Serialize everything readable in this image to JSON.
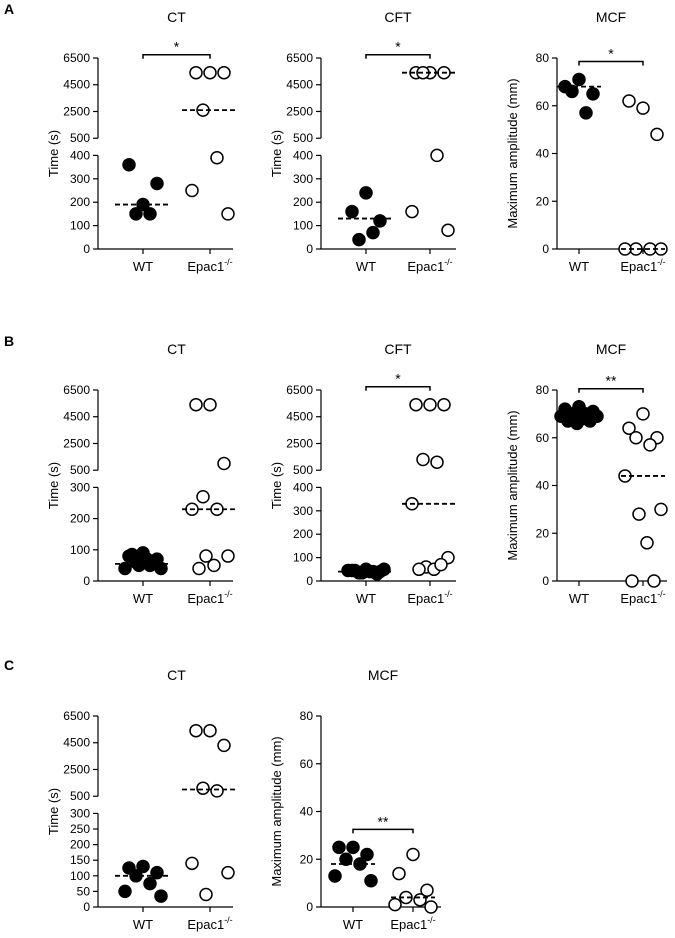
{
  "panel_labels": [
    "A",
    "B",
    "C"
  ],
  "chart_data": [
    {
      "type": "scatter",
      "title": "CT",
      "ylabel": "Time (s)",
      "categories": [
        "WT",
        {
          "text": "Epac1",
          "sup": "-/-"
        }
      ],
      "y_segments": [
        {
          "ylim": [
            0,
            400
          ],
          "yticks": [
            0,
            100,
            200,
            300,
            400
          ]
        },
        {
          "ylim": [
            500,
            6500
          ],
          "yticks": [
            500,
            2500,
            4500,
            6500
          ]
        }
      ],
      "series": [
        {
          "color": "#000000",
          "filled": true,
          "values": [
            190,
            360,
            280,
            150,
            150
          ],
          "median": 190
        },
        {
          "color": "#000000",
          "filled": false,
          "values": [
            5400,
            5400,
            5400,
            2600,
            390,
            250,
            150
          ],
          "median": 2600
        }
      ],
      "significance": "*"
    },
    {
      "type": "scatter",
      "title": "CFT",
      "ylabel": "Time (s)",
      "categories": [
        "WT",
        {
          "text": "Epac1",
          "sup": "-/-"
        }
      ],
      "y_segments": [
        {
          "ylim": [
            0,
            400
          ],
          "yticks": [
            0,
            100,
            200,
            300,
            400
          ]
        },
        {
          "ylim": [
            500,
            6500
          ],
          "yticks": [
            500,
            2500,
            4500,
            6500
          ]
        }
      ],
      "series": [
        {
          "color": "#000000",
          "filled": true,
          "values": [
            240,
            160,
            120,
            40,
            70
          ],
          "median": 130
        },
        {
          "color": "#000000",
          "filled": false,
          "values": [
            5400,
            5400,
            5400,
            5400,
            400,
            160,
            80
          ],
          "median": 5400
        }
      ],
      "significance": "*"
    },
    {
      "type": "scatter",
      "title": "MCF",
      "ylabel": "Maximum amplitude (mm)",
      "categories": [
        "WT",
        {
          "text": "Epac1",
          "sup": "-/-"
        }
      ],
      "ylim": [
        0,
        80
      ],
      "yticks": [
        0,
        20,
        40,
        60,
        80
      ],
      "series": [
        {
          "color": "#000000",
          "filled": true,
          "values": [
            71,
            68,
            65,
            66,
            57
          ],
          "median": 68
        },
        {
          "color": "#000000",
          "filled": false,
          "values": [
            59,
            62,
            48,
            0,
            0,
            0,
            0
          ],
          "median": 0
        }
      ],
      "significance": "*"
    },
    {
      "type": "scatter",
      "title": "CT",
      "ylabel": "Time (s)",
      "categories": [
        "WT",
        {
          "text": "Epac1",
          "sup": "-/-"
        }
      ],
      "y_segments": [
        {
          "ylim": [
            0,
            300
          ],
          "yticks": [
            0,
            100,
            200,
            300
          ]
        },
        {
          "ylim": [
            500,
            6500
          ],
          "yticks": [
            500,
            2500,
            4500,
            6500
          ]
        }
      ],
      "series": [
        {
          "color": "#000000",
          "filled": true,
          "values": [
            90,
            80,
            70,
            60,
            50,
            40,
            40,
            50,
            70,
            85
          ],
          "median": 55
        },
        {
          "color": "#000000",
          "filled": false,
          "values": [
            5400,
            5400,
            1000,
            270,
            230,
            230,
            80,
            80,
            50,
            40
          ],
          "median": 230
        }
      ]
    },
    {
      "type": "scatter",
      "title": "CFT",
      "ylabel": "Time (s)",
      "categories": [
        "WT",
        {
          "text": "Epac1",
          "sup": "-/-"
        }
      ],
      "y_segments": [
        {
          "ylim": [
            0,
            400
          ],
          "yticks": [
            0,
            100,
            200,
            300,
            400
          ]
        },
        {
          "ylim": [
            500,
            6500
          ],
          "yticks": [
            500,
            2500,
            4500,
            6500
          ]
        }
      ],
      "series": [
        {
          "color": "#000000",
          "filled": true,
          "values": [
            50,
            45,
            40,
            35,
            40,
            45,
            50,
            35,
            40,
            45,
            30,
            40
          ],
          "median": 40
        },
        {
          "color": "#000000",
          "filled": false,
          "values": [
            5400,
            5400,
            5400,
            1300,
            1100,
            330,
            100,
            60,
            50,
            50,
            70
          ],
          "median": 330
        }
      ],
      "significance": "*"
    },
    {
      "type": "scatter",
      "title": "MCF",
      "ylabel": "Maximum amplitude (mm)",
      "categories": [
        "WT",
        {
          "text": "Epac1",
          "sup": "-/-"
        }
      ],
      "ylim": [
        0,
        80
      ],
      "yticks": [
        0,
        20,
        40,
        60,
        80
      ],
      "series": [
        {
          "color": "#000000",
          "filled": true,
          "values": [
            73,
            72,
            71,
            70,
            70,
            69,
            69,
            68,
            68,
            67,
            67,
            66
          ],
          "median": 69
        },
        {
          "color": "#000000",
          "filled": false,
          "values": [
            70,
            64,
            60,
            60,
            57,
            44,
            30,
            28,
            16,
            0,
            0
          ],
          "median": 44
        }
      ],
      "significance": "**"
    },
    {
      "type": "scatter",
      "title": "CT",
      "ylabel": "Time (s)",
      "categories": [
        "WT",
        {
          "text": "Epac1",
          "sup": "-/-"
        }
      ],
      "y_segments": [
        {
          "ylim": [
            0,
            300
          ],
          "yticks": [
            0,
            50,
            100,
            150,
            200,
            250,
            300
          ]
        },
        {
          "ylim": [
            500,
            6500
          ],
          "yticks": [
            500,
            2500,
            4500,
            6500
          ]
        }
      ],
      "series": [
        {
          "color": "#000000",
          "filled": true,
          "values": [
            130,
            125,
            110,
            100,
            75,
            50,
            35
          ],
          "median": 100
        },
        {
          "color": "#000000",
          "filled": false,
          "values": [
            5400,
            5400,
            4300,
            1100,
            900,
            140,
            110,
            40
          ],
          "median": 1000
        }
      ]
    },
    {
      "type": "scatter",
      "title": "MCF",
      "ylabel": "Maximum amplitude (mm)",
      "categories": [
        "WT",
        {
          "text": "Epac1",
          "sup": "-/-"
        }
      ],
      "ylim": [
        0,
        80
      ],
      "yticks": [
        0,
        20,
        40,
        60,
        80
      ],
      "series": [
        {
          "color": "#000000",
          "filled": true,
          "values": [
            25,
            25,
            22,
            20,
            18,
            13,
            11
          ],
          "median": 18
        },
        {
          "color": "#000000",
          "filled": false,
          "values": [
            22,
            14,
            7,
            4,
            3,
            1,
            0
          ],
          "median": 4
        }
      ],
      "significance": "**"
    }
  ]
}
